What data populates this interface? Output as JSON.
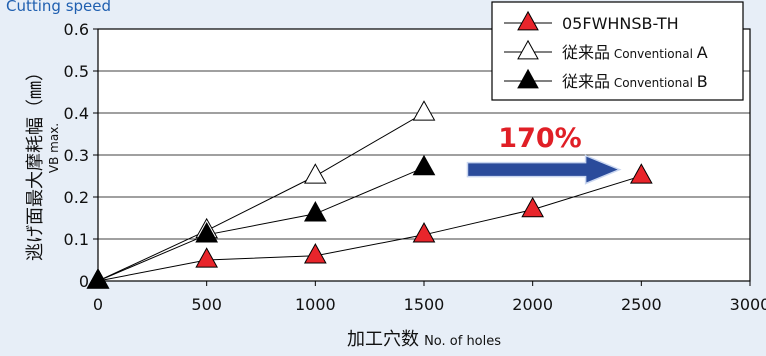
{
  "header": {
    "caption": "Cutting speed"
  },
  "chart_data": {
    "type": "scatter",
    "xlabel_main": "加工穴数",
    "xlabel_sub": "No. of holes",
    "ylabel_main": "逃げ面最大摩耗幅（㎜）",
    "ylabel_sub": "VB max.",
    "xlim": [
      0,
      3000
    ],
    "ylim": [
      0,
      0.6
    ],
    "xticks": [
      0,
      500,
      1000,
      1500,
      2000,
      2500,
      3000
    ],
    "yticks": [
      0,
      0.1,
      0.2,
      0.3,
      0.4,
      0.5,
      0.6
    ],
    "grid": {
      "horizontal": true,
      "vertical": false
    },
    "legend_position": "top-right",
    "series": [
      {
        "key": "fwh",
        "name": "05FWHNSB-TH",
        "marker": "triangle-red",
        "color": "#e8252b",
        "points": [
          [
            0,
            0
          ],
          [
            500,
            0.05
          ],
          [
            1000,
            0.06
          ],
          [
            1500,
            0.11
          ],
          [
            2000,
            0.17
          ],
          [
            2500,
            0.25
          ]
        ]
      },
      {
        "key": "convA",
        "name": "従来品",
        "name_sub": "Conventional",
        "name_suffix": "A",
        "marker": "triangle-white",
        "color": "#ffffff",
        "points": [
          [
            0,
            0
          ],
          [
            500,
            0.12
          ],
          [
            1000,
            0.25
          ],
          [
            1500,
            0.4
          ]
        ]
      },
      {
        "key": "convB",
        "name": "従来品",
        "name_sub": "Conventional",
        "name_suffix": "B",
        "marker": "triangle-black",
        "color": "#000000",
        "points": [
          [
            0,
            0
          ],
          [
            500,
            0.11
          ],
          [
            1000,
            0.16
          ],
          [
            1500,
            0.27
          ]
        ]
      }
    ],
    "annotation": {
      "text": "170%",
      "color": "#e01f26",
      "arrow_color": "#2a4b9b",
      "arrow_from": [
        1700,
        0.27
      ],
      "arrow_to": [
        2400,
        0.27
      ]
    }
  }
}
